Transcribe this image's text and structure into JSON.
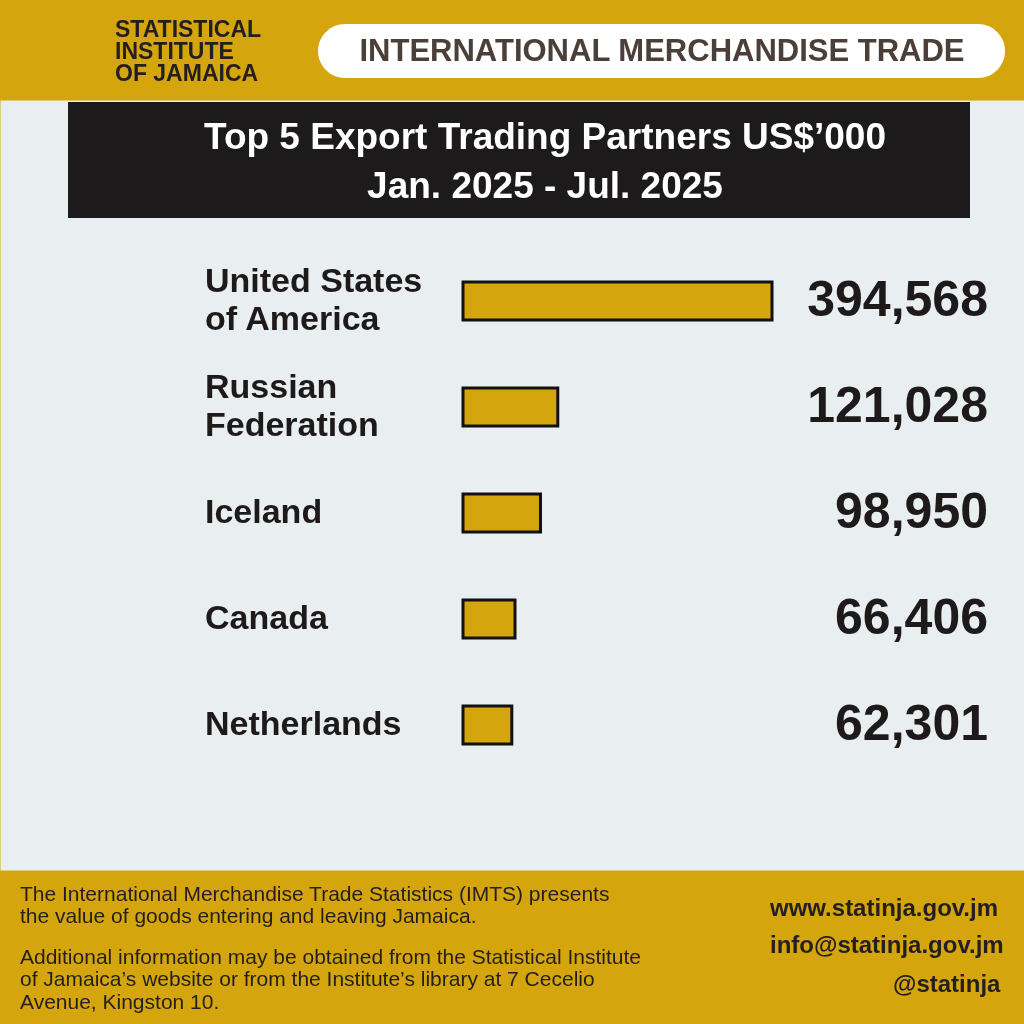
{
  "chart_data": {
    "type": "bar",
    "orientation": "horizontal",
    "title": "Top 5 Export Trading Partners US$’000",
    "subtitle": "Jan. 2025 - Jul. 2025",
    "categories": [
      "United States of America",
      "Russian Federation",
      "Iceland",
      "Canada",
      "Netherlands"
    ],
    "values": [
      394568,
      121028,
      98950,
      66406,
      62301
    ],
    "value_labels": [
      "394,568",
      "121,028",
      "98,950",
      "66,406",
      "62,301"
    ],
    "color": "#d4a50c",
    "tick_labels": "y",
    "annotations": [
      "STATISTICAL INSTITUTE OF JAMAICA",
      "INTERNATIONAL MERCHANDISE TRADE",
      "The International Merchandise Trade Statistics (IMTS) presents the value of goods entering and leaving Jamaica.",
      "Additional information may be obtained from the Statistical Institute of Jamaica’s website or from the Institute’s library at 7 Cecelio Avenue, Kingston 10.",
      "www.statinja.gov.jm",
      "info@statinja.gov.jm",
      "@statinja"
    ]
  }
}
